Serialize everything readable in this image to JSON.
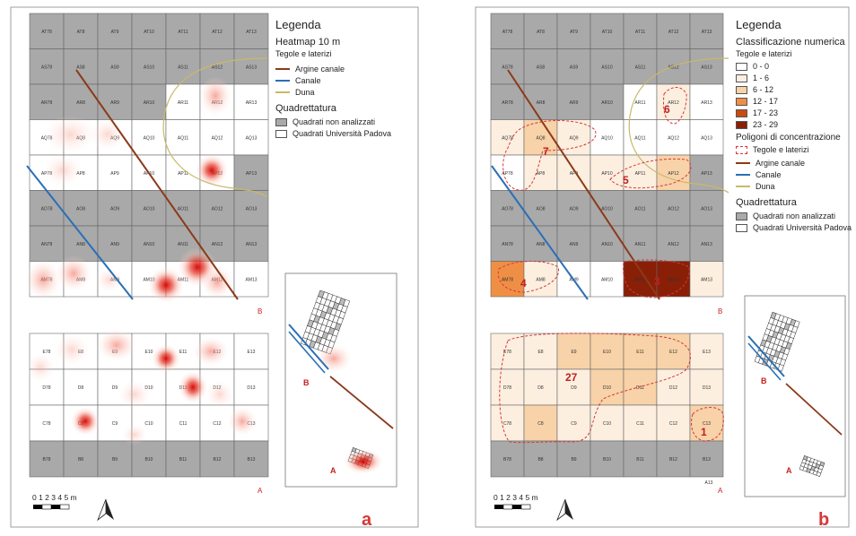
{
  "panel_labels": {
    "a": "a",
    "b": "b"
  },
  "area_labels": {
    "B": "B",
    "A": "A"
  },
  "scale": {
    "ticks": "0 1 2 3 4 5 m"
  },
  "legend_a": {
    "title": "Legenda",
    "subtitle": "Heatmap 10 m",
    "category": "Tegole e laterizi",
    "lines": [
      {
        "label": "Argine canale",
        "color": "#8b3a1a"
      },
      {
        "label": "Canale",
        "color": "#2a6fb5"
      },
      {
        "label": "Duna",
        "color": "#c8b96a"
      }
    ],
    "grid_title": "Quadrettatura",
    "grid_items": [
      {
        "label": "Quadrati non analizzati",
        "color": "#a9a9a9"
      },
      {
        "label": "Quadrati Università Padova",
        "color": "#ffffff"
      }
    ]
  },
  "legend_b": {
    "title": "Legenda",
    "subtitle": "Classificazione numerica",
    "category": "Tegole e laterizi",
    "classes": [
      {
        "label": "0 - 0",
        "color": "#ffffff"
      },
      {
        "label": "1 - 6",
        "color": "#fcefe0"
      },
      {
        "label": "6 - 12",
        "color": "#f8d2a8"
      },
      {
        "label": "12 - 17",
        "color": "#ef8f46"
      },
      {
        "label": "17 - 23",
        "color": "#c94b13"
      },
      {
        "label": "23 - 29",
        "color": "#8a1f07"
      }
    ],
    "poly_title": "Poligoni di concentrazione",
    "poly_label": "Tegole e laterizi",
    "lines": [
      {
        "label": "Argine canale",
        "color": "#8b3a1a"
      },
      {
        "label": "Canale",
        "color": "#2a6fb5"
      },
      {
        "label": "Duna",
        "color": "#c8b96a"
      }
    ],
    "grid_title": "Quadrettatura",
    "grid_items": [
      {
        "label": "Quadrati non analizzati",
        "color": "#a9a9a9"
      },
      {
        "label": "Quadrati Università Padova",
        "color": "#ffffff"
      }
    ]
  },
  "grid_B": {
    "rows": [
      [
        "AT78",
        "AT8",
        "AT9",
        "AT10",
        "AT11",
        "AT12",
        "AT13"
      ],
      [
        "AS78",
        "AS8",
        "AS9",
        "AS10",
        "AS11",
        "AS12",
        "AS13"
      ],
      [
        "AR78",
        "AR8",
        "AR9",
        "AR10",
        "AR11",
        "AR12",
        "AR13"
      ],
      [
        "AQ78",
        "AQ8",
        "AQ9",
        "AQ10",
        "AQ11",
        "AQ12",
        "AQ13"
      ],
      [
        "AP78",
        "AP8",
        "AP9",
        "AP10",
        "AP11",
        "AP12",
        "AP13"
      ],
      [
        "AO78",
        "AO8",
        "AO9",
        "AO10",
        "AO11",
        "AO12",
        "AO13"
      ],
      [
        "AN78",
        "AN8",
        "AN9",
        "AN10",
        "AN11",
        "AN12",
        "AN13"
      ],
      [
        "AM78",
        "AM8",
        "AM9",
        "AM10",
        "AM11",
        "AM12",
        "AM13"
      ]
    ],
    "analyzed": [
      [
        0,
        0,
        0,
        0,
        0,
        0,
        0
      ],
      [
        0,
        0,
        0,
        0,
        0,
        0,
        0
      ],
      [
        0,
        0,
        0,
        0,
        1,
        1,
        1
      ],
      [
        1,
        1,
        1,
        1,
        1,
        1,
        1
      ],
      [
        1,
        1,
        1,
        1,
        1,
        1,
        0
      ],
      [
        0,
        0,
        0,
        0,
        0,
        0,
        0
      ],
      [
        0,
        0,
        0,
        0,
        0,
        0,
        0
      ],
      [
        1,
        1,
        1,
        1,
        1,
        1,
        1
      ]
    ],
    "classes": [
      [
        0,
        0,
        0,
        0,
        0,
        0,
        0
      ],
      [
        0,
        0,
        0,
        0,
        0,
        0,
        0
      ],
      [
        0,
        0,
        0,
        0,
        0,
        1,
        0
      ],
      [
        1,
        2,
        1,
        0,
        0,
        0,
        0
      ],
      [
        0,
        1,
        1,
        1,
        1,
        2,
        0
      ],
      [
        0,
        0,
        0,
        0,
        0,
        0,
        0
      ],
      [
        0,
        0,
        0,
        0,
        0,
        0,
        0
      ],
      [
        3,
        1,
        0,
        0,
        5,
        5,
        1
      ]
    ]
  },
  "grid_A": {
    "rows": [
      [
        "E78",
        "E8",
        "E9",
        "E10",
        "E11",
        "E12",
        "E13"
      ],
      [
        "D78",
        "D8",
        "D9",
        "D10",
        "D11",
        "D12",
        "D13"
      ],
      [
        "C78",
        "C8",
        "C9",
        "C10",
        "C11",
        "C12",
        "C13"
      ],
      [
        "B78",
        "B8",
        "B9",
        "B10",
        "B11",
        "B12",
        "B13"
      ]
    ],
    "analyzed": [
      [
        1,
        1,
        1,
        1,
        1,
        1,
        1
      ],
      [
        1,
        1,
        1,
        1,
        1,
        1,
        1
      ],
      [
        1,
        1,
        1,
        1,
        1,
        1,
        1
      ],
      [
        0,
        0,
        0,
        0,
        0,
        0,
        0
      ]
    ],
    "classes": [
      [
        1,
        1,
        2,
        2,
        2,
        2,
        1
      ],
      [
        1,
        1,
        1,
        2,
        2,
        1,
        1
      ],
      [
        1,
        2,
        1,
        1,
        1,
        1,
        2
      ],
      [
        0,
        0,
        0,
        0,
        0,
        0,
        0
      ]
    ],
    "extra_label": "A13"
  },
  "polygon_labels_B": [
    "7",
    "6",
    "5",
    "4",
    "3"
  ],
  "polygon_labels_A": [
    "27",
    "1"
  ],
  "colors": {
    "unanalyzed": "#a9a9a9",
    "analyzed": "#ffffff",
    "poly": "#d63838",
    "heat": "#d81818"
  }
}
